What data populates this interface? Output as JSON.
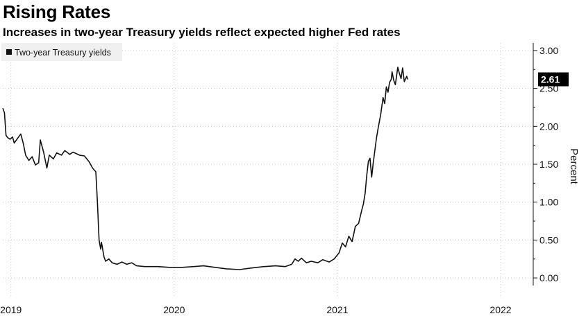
{
  "header": {
    "title": "Rising Rates",
    "subtitle": "Increases in two-year Treasury yields reflect expected higher Fed rates"
  },
  "colors": {
    "line": "#111111",
    "grid": "#c8c8c8",
    "legend_bg": "#f0f0f0",
    "last_bg": "#000000"
  },
  "chart_data": {
    "type": "line",
    "title": "Rising Rates",
    "subtitle": "Increases in two-year Treasury yields reflect expected higher Fed rates",
    "xlabel": "",
    "ylabel": "Percent",
    "ylim": [
      -0.1,
      3.1
    ],
    "xlim": [
      2018.95,
      2022.2
    ],
    "y_ticks": [
      0,
      0.5,
      1,
      1.5,
      2,
      2.5,
      3
    ],
    "y_tick_labels": [
      "0.00",
      "0.50",
      "1.00",
      "1.50",
      "2.00",
      "2.50",
      "3.00"
    ],
    "x_ticks": [
      2019,
      2020,
      2021,
      2022
    ],
    "x_tick_labels": [
      "2019",
      "2020",
      "2021",
      "2022"
    ],
    "legend": {
      "position": "top-left",
      "entries": [
        "Two-year Treasury yields"
      ]
    },
    "last_value_label": "2.61",
    "grid": true,
    "series": [
      {
        "name": "Two-year Treasury yields",
        "points": [
          [
            2018.95,
            2.24
          ],
          [
            2018.96,
            2.18
          ],
          [
            2018.97,
            1.88
          ],
          [
            2018.98,
            1.85
          ],
          [
            2018.995,
            1.83
          ],
          [
            2019.01,
            1.86
          ],
          [
            2019.02,
            1.78
          ],
          [
            2019.04,
            1.84
          ],
          [
            2019.06,
            1.9
          ],
          [
            2019.075,
            1.78
          ],
          [
            2019.09,
            1.62
          ],
          [
            2019.11,
            1.55
          ],
          [
            2019.13,
            1.6
          ],
          [
            2019.15,
            1.49
          ],
          [
            2019.17,
            1.52
          ],
          [
            2019.18,
            1.82
          ],
          [
            2019.2,
            1.66
          ],
          [
            2019.22,
            1.45
          ],
          [
            2019.235,
            1.62
          ],
          [
            2019.26,
            1.57
          ],
          [
            2019.28,
            1.65
          ],
          [
            2019.31,
            1.62
          ],
          [
            2019.33,
            1.68
          ],
          [
            2019.36,
            1.63
          ],
          [
            2019.38,
            1.66
          ],
          [
            2019.42,
            1.62
          ],
          [
            2019.45,
            1.61
          ],
          [
            2019.48,
            1.53
          ],
          [
            2019.5,
            1.45
          ],
          [
            2019.52,
            1.4
          ],
          [
            2019.53,
            1.0
          ],
          [
            2019.54,
            0.5
          ],
          [
            2019.55,
            0.38
          ],
          [
            2019.555,
            0.47
          ],
          [
            2019.57,
            0.28
          ],
          [
            2019.58,
            0.22
          ],
          [
            2019.6,
            0.25
          ],
          [
            2019.62,
            0.2
          ],
          [
            2019.65,
            0.18
          ],
          [
            2019.68,
            0.21
          ],
          [
            2019.71,
            0.18
          ],
          [
            2019.74,
            0.2
          ],
          [
            2019.77,
            0.16
          ],
          [
            2019.82,
            0.15
          ],
          [
            2019.9,
            0.15
          ],
          [
            2019.97,
            0.14
          ],
          [
            2020.05,
            0.14
          ],
          [
            2020.12,
            0.15
          ],
          [
            2020.18,
            0.16
          ],
          [
            2020.25,
            0.14
          ],
          [
            2020.32,
            0.12
          ],
          [
            2020.4,
            0.11
          ],
          [
            2020.47,
            0.13
          ],
          [
            2020.55,
            0.15
          ],
          [
            2020.62,
            0.16
          ],
          [
            2020.68,
            0.15
          ],
          [
            2020.72,
            0.18
          ],
          [
            2020.74,
            0.25
          ],
          [
            2020.76,
            0.22
          ],
          [
            2020.78,
            0.26
          ],
          [
            2020.81,
            0.2
          ],
          [
            2020.84,
            0.22
          ],
          [
            2020.88,
            0.2
          ],
          [
            2020.91,
            0.24
          ],
          [
            2020.95,
            0.21
          ],
          [
            2020.98,
            0.25
          ],
          [
            2021.01,
            0.33
          ],
          [
            2021.03,
            0.46
          ],
          [
            2021.05,
            0.41
          ],
          [
            2021.07,
            0.55
          ],
          [
            2021.09,
            0.48
          ],
          [
            2021.11,
            0.68
          ],
          [
            2021.13,
            0.72
          ],
          [
            2021.15,
            0.9
          ],
          [
            2021.16,
            0.98
          ],
          [
            2021.17,
            1.12
          ],
          [
            2021.18,
            1.35
          ],
          [
            2021.19,
            1.54
          ],
          [
            2021.2,
            1.58
          ],
          [
            2021.21,
            1.33
          ],
          [
            2021.22,
            1.52
          ],
          [
            2021.24,
            1.85
          ],
          [
            2021.25,
            1.98
          ],
          [
            2021.265,
            2.15
          ],
          [
            2021.28,
            2.38
          ],
          [
            2021.29,
            2.3
          ],
          [
            2021.3,
            2.52
          ],
          [
            2021.31,
            2.45
          ],
          [
            2021.32,
            2.58
          ],
          [
            2021.33,
            2.62
          ],
          [
            2021.335,
            2.72
          ],
          [
            2021.345,
            2.61
          ],
          [
            2021.355,
            2.55
          ],
          [
            2021.36,
            2.62
          ],
          [
            2021.37,
            2.78
          ],
          [
            2021.38,
            2.7
          ],
          [
            2021.39,
            2.63
          ],
          [
            2021.4,
            2.77
          ],
          [
            2021.41,
            2.59
          ],
          [
            2021.425,
            2.66
          ],
          [
            2021.43,
            2.62
          ]
        ]
      }
    ]
  }
}
